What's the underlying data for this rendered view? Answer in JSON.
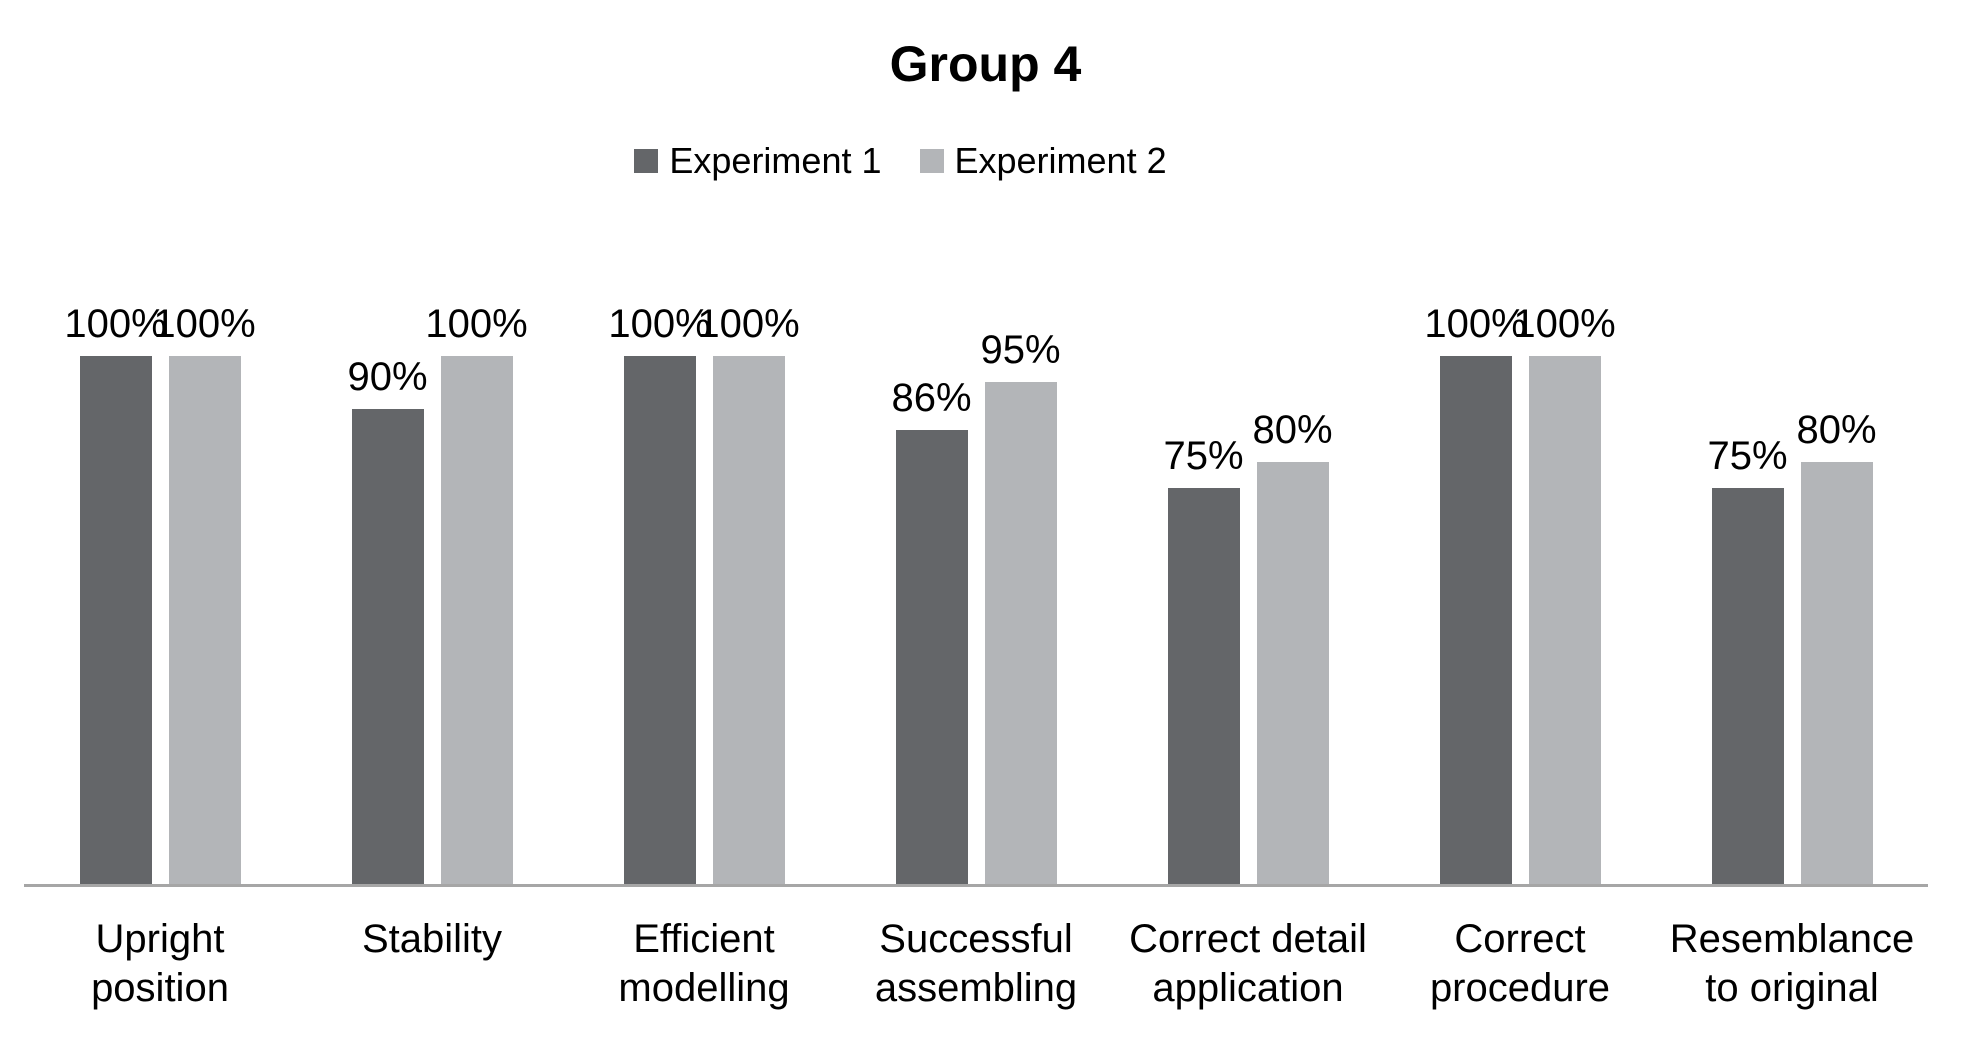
{
  "title": "Group 4",
  "colors": {
    "experiment1": "#646669",
    "experiment2": "#b3b5b8",
    "axis_line": "#a6a6a6",
    "text": "#000000",
    "background": "#ffffff"
  },
  "chart_data": {
    "type": "bar",
    "title": "Group 4",
    "categories": [
      "Upright position",
      "Stability",
      "Efficient modelling",
      "Successful assembling",
      "Correct detail application",
      "Correct procedure",
      "Resemblance to original"
    ],
    "category_label_lines": [
      "Upright\nposition",
      "Stability",
      "Efficient\nmodelling",
      "Successful\nassembling",
      "Correct detail\napplication",
      "Correct\nprocedure",
      "Resemblance\nto original"
    ],
    "series": [
      {
        "name": "Experiment 1",
        "color": "#646669",
        "values": [
          100,
          90,
          100,
          86,
          75,
          100,
          75
        ]
      },
      {
        "name": "Experiment 2",
        "color": "#b3b5b8",
        "values": [
          100,
          100,
          100,
          95,
          80,
          100,
          80
        ]
      }
    ],
    "data_labels": [
      "100%",
      "90%",
      "100%",
      "86%",
      "75%",
      "100%",
      "75%",
      "100%",
      "100%",
      "100%",
      "95%",
      "80%",
      "100%",
      "80%"
    ],
    "value_suffix": "%",
    "xlabel": "",
    "ylabel": "",
    "ylim": [
      0,
      100
    ],
    "grid": false,
    "y_axis_visible": false,
    "legend_position": "top"
  }
}
